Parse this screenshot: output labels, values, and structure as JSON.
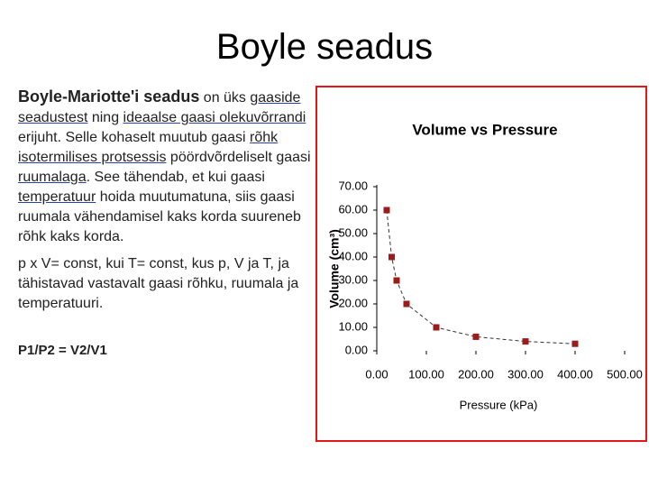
{
  "title": "Boyle seadus",
  "intro": [
    {
      "text": "Boyle-Mariotte'i seadus",
      "bold": true
    },
    {
      "text": " on üks "
    },
    {
      "text": "gaaside seadustest",
      "link": true
    },
    {
      "text": " ning "
    },
    {
      "text": "ideaalse gaasi olekuvõrrandi",
      "link": true
    },
    {
      "text": " erijuht. Selle kohaselt muutub gaasi "
    },
    {
      "text": "rõhk",
      "link": true
    },
    {
      "text": " "
    },
    {
      "text": "isotermilises protsessis",
      "link": true
    },
    {
      "text": " pöördvõrdeliselt gaasi "
    },
    {
      "text": "ruumalaga",
      "link": true
    },
    {
      "text": ". See tähendab, et kui gaasi "
    },
    {
      "text": "temperatuur",
      "link": true
    },
    {
      "text": " hoida muutumatuna, siis gaasi ruumala vähendamisel kaks korda suureneb rõhk kaks korda."
    }
  ],
  "definition": " p x V= const, kui T= const, kus  p, V ja T, ja tähistavad vastavalt gaasi rõhku, ruumala ja temperatuuri.",
  "formula": "P1/P2 = V2/V1",
  "chart_data": {
    "type": "scatter",
    "title": "Volume vs Pressure",
    "x_label": "Pressure (kPa)",
    "y_label": "Volume (cm³)",
    "x": [
      20,
      30,
      40,
      60,
      120,
      200,
      300,
      400
    ],
    "series": [
      {
        "values": [
          60,
          40,
          30,
          20,
          10,
          6,
          4,
          3
        ],
        "color": "#9b1c1c"
      }
    ],
    "line_style": "dashed",
    "xlim": [
      0,
      500
    ],
    "ylim": [
      0,
      70
    ],
    "xticks": [
      {
        "value": 0,
        "label": "0.00"
      },
      {
        "value": 100,
        "label": "100.00"
      },
      {
        "value": 200,
        "label": "200.00"
      },
      {
        "value": 300,
        "label": "300.00"
      },
      {
        "value": 400,
        "label": "400.00"
      },
      {
        "value": 500,
        "label": "500.00"
      }
    ],
    "yticks": [
      {
        "value": 0,
        "label": "0.00"
      },
      {
        "value": 10,
        "label": "10.00"
      },
      {
        "value": 20,
        "label": "20.00"
      },
      {
        "value": 30,
        "label": "30.00"
      },
      {
        "value": 40,
        "label": "40.00"
      },
      {
        "value": 50,
        "label": "50.00"
      },
      {
        "value": 60,
        "label": "60.00"
      },
      {
        "value": 70,
        "label": "70.00"
      }
    ]
  }
}
